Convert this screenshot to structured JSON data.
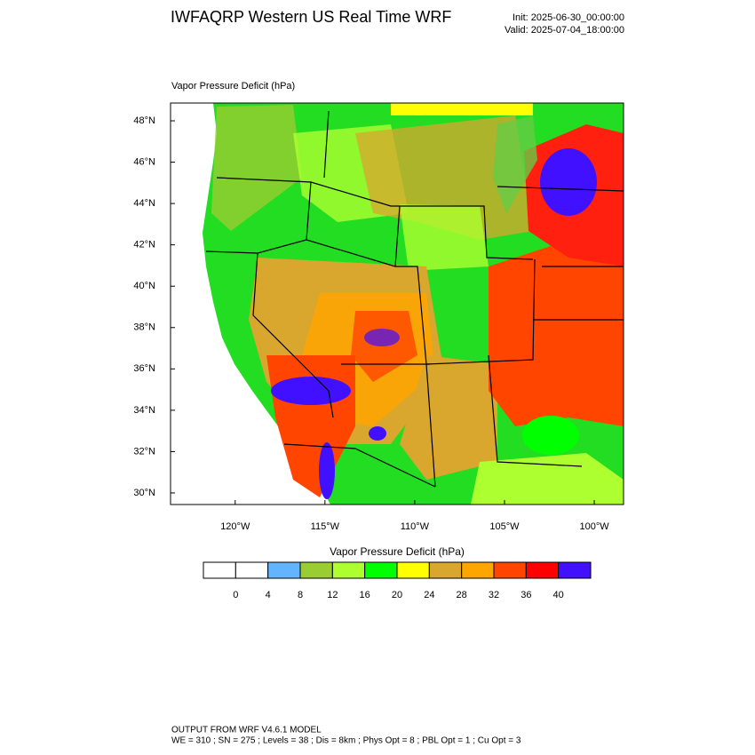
{
  "header": {
    "title": "IWFAQRP Western US Real Time WRF",
    "init": "Init: 2025-06-30_00:00:00",
    "valid": "Valid: 2025-07-04_18:00:00"
  },
  "map": {
    "title": "Vapor Pressure Deficit   (hPa)",
    "lat_range": [
      29.44,
      48.86
    ],
    "lon_range": [
      -123.6,
      -98.37
    ],
    "lat_ticks": [
      {
        "value": 48,
        "label": "48°N"
      },
      {
        "value": 46,
        "label": "46°N"
      },
      {
        "value": 44,
        "label": "44°N"
      },
      {
        "value": 42,
        "label": "42°N"
      },
      {
        "value": 40,
        "label": "40°N"
      },
      {
        "value": 38,
        "label": "38°N"
      },
      {
        "value": 36,
        "label": "36°N"
      },
      {
        "value": 34,
        "label": "34°N"
      },
      {
        "value": 32,
        "label": "32°N"
      },
      {
        "value": 30,
        "label": "30°N"
      }
    ],
    "lon_ticks": [
      {
        "value": -120,
        "label": "120°W"
      },
      {
        "value": -115,
        "label": "115°W"
      },
      {
        "value": -110,
        "label": "110°W"
      },
      {
        "value": -105,
        "label": "105°W"
      },
      {
        "value": -100,
        "label": "100°W"
      }
    ]
  },
  "colorbar": {
    "title": "Vapor Pressure Deficit  (hPa)",
    "ticks": [
      0,
      4,
      8,
      12,
      16,
      20,
      24,
      28,
      32,
      36,
      40
    ],
    "colors": [
      "#ffffff",
      "#ffffff",
      "#63b4ff",
      "#9acd32",
      "#adff2f",
      "#00ff00",
      "#ffff00",
      "#d9a62e",
      "#ffa500",
      "#ff4500",
      "#ff0000",
      "#4010ff"
    ]
  },
  "footer": {
    "line1": "OUTPUT FROM WRF V4.6.1 MODEL",
    "line2": "WE = 310 ; SN = 275 ; Levels = 38 ; Dis = 8km ; Phys Opt = 8 ; PBL Opt = 1 ; Cu Opt = 3"
  }
}
